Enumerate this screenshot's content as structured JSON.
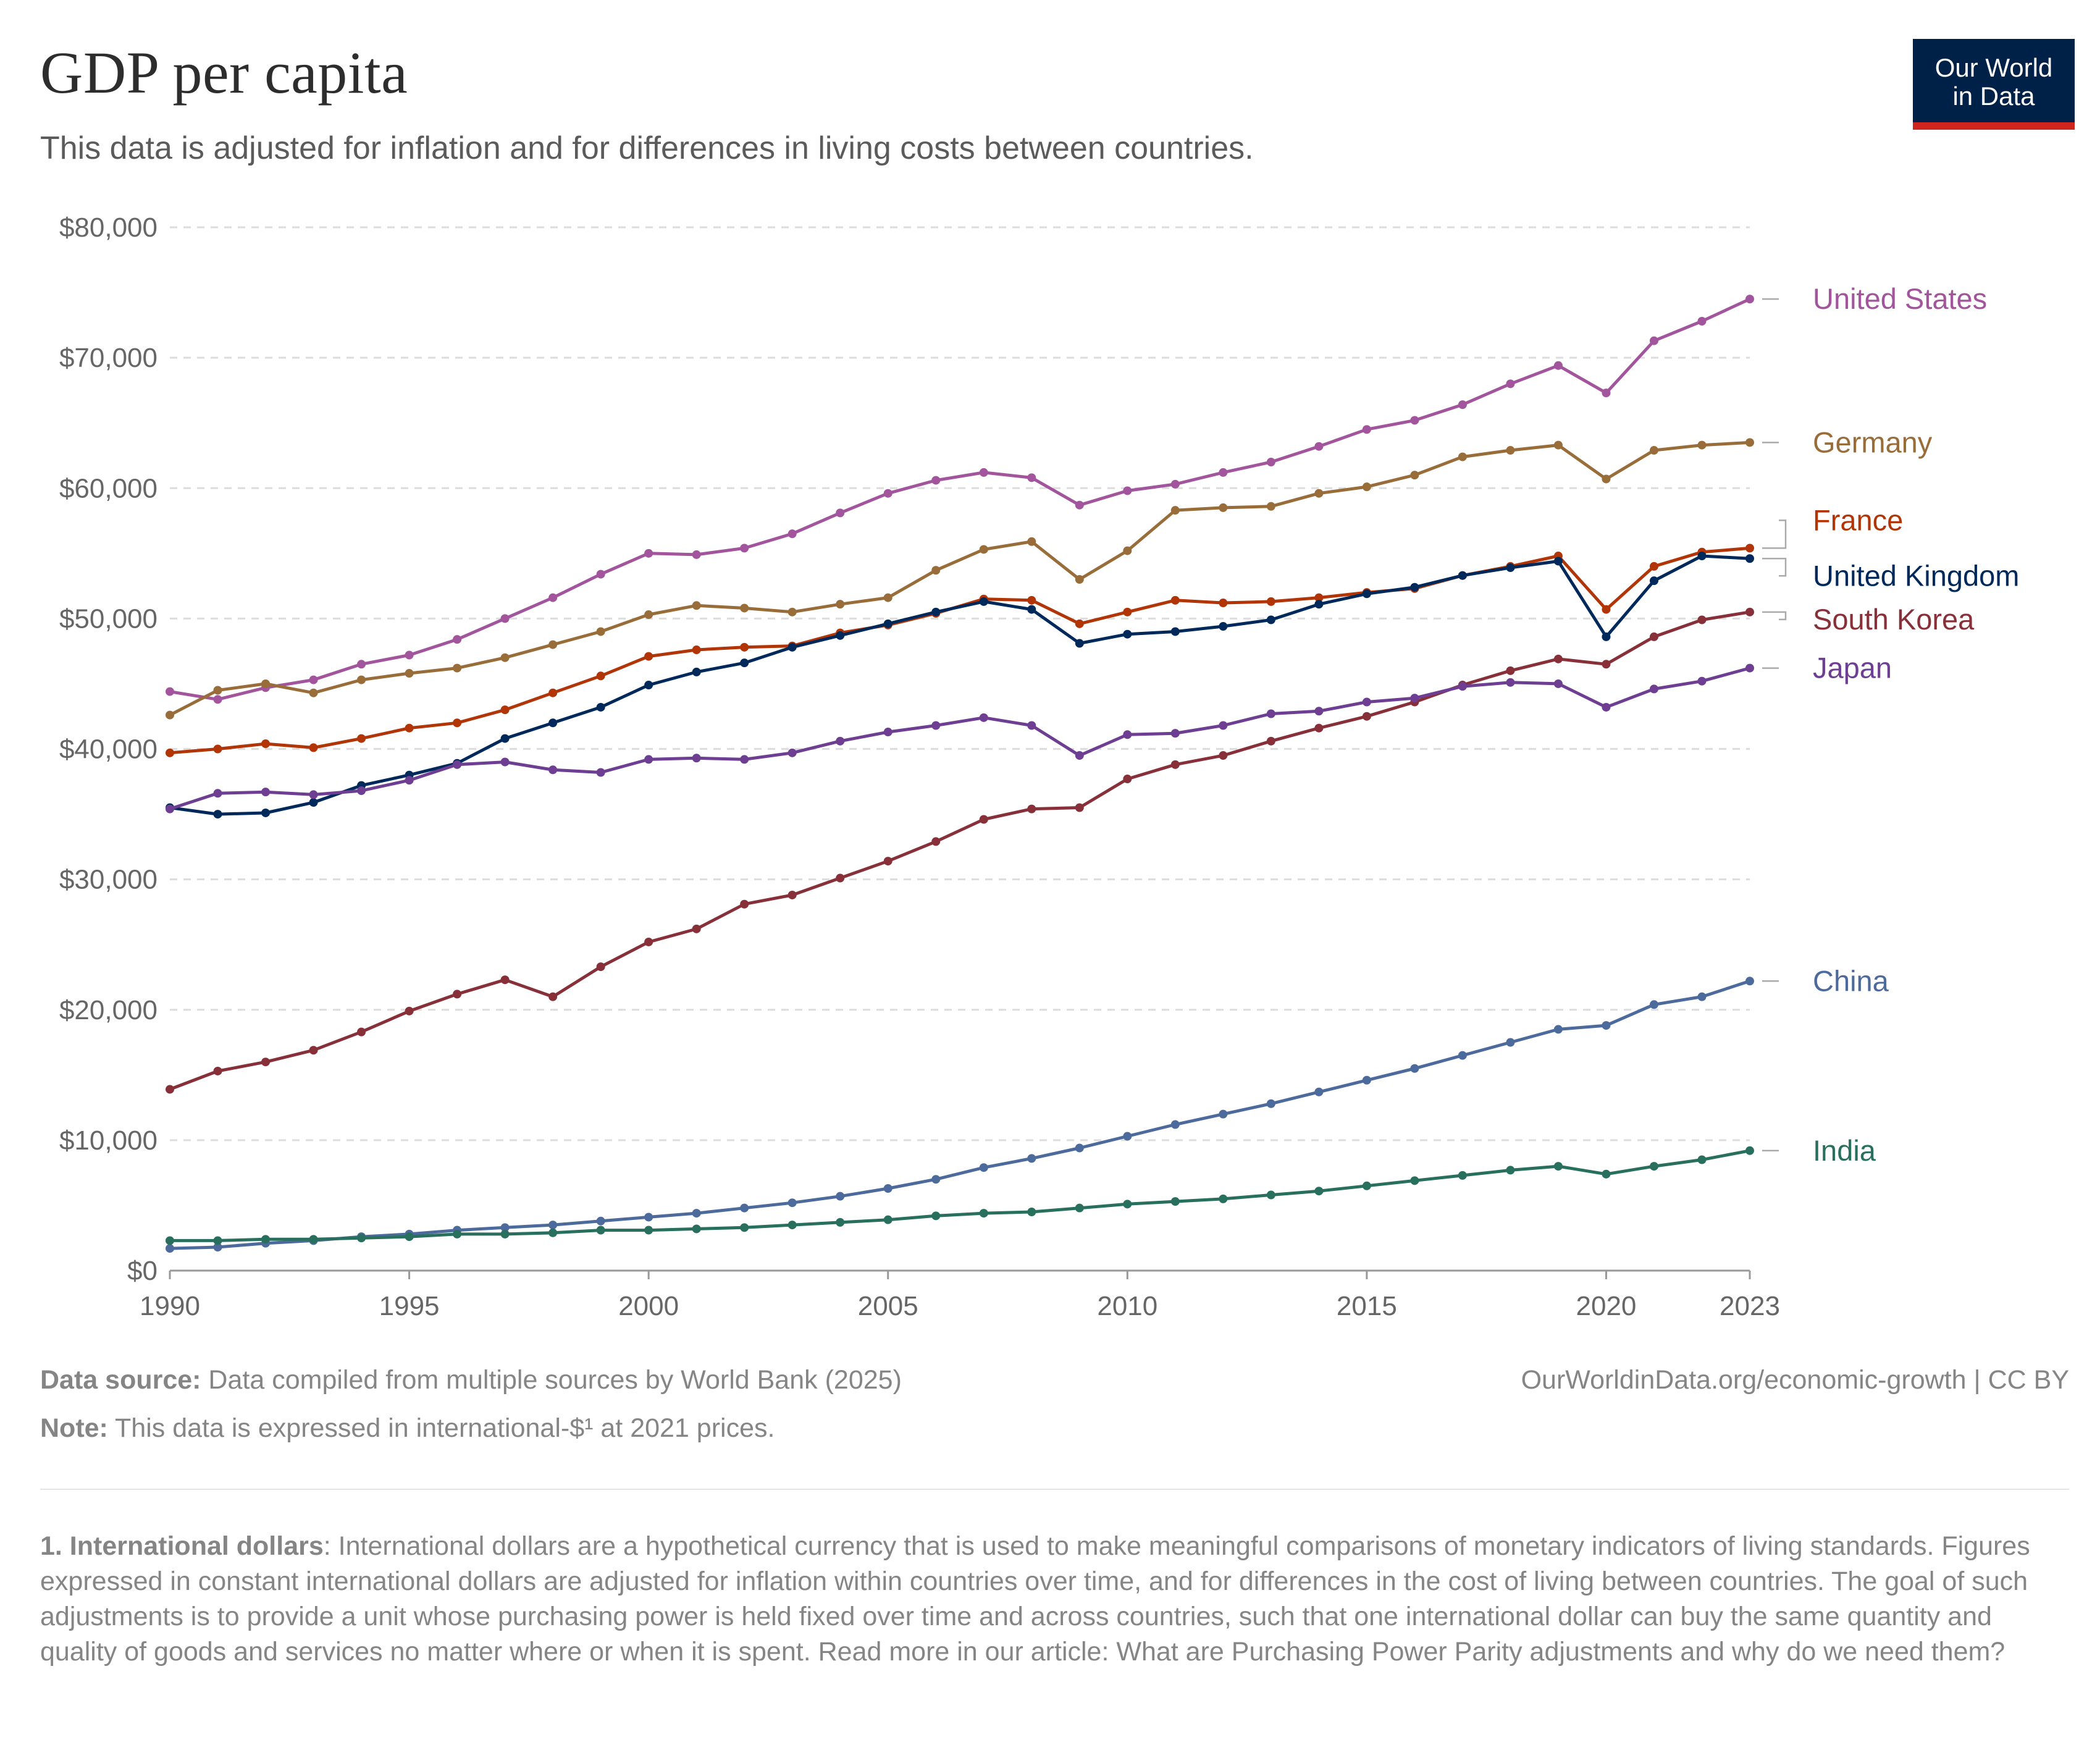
{
  "header": {
    "title": "GDP per capita",
    "subtitle": "This data is adjusted for inflation and for differences in living costs between countries."
  },
  "logo": {
    "line1": "Our World",
    "line2": "in Data",
    "bg_color": "#002147",
    "accent_color": "#ce261e"
  },
  "footer": {
    "source_label": "Data source:",
    "source_text": " Data compiled from multiple sources by World Bank (2025)",
    "note_label": "Note:",
    "note_text": " This data is expressed in international-$¹ at 2021 prices.",
    "credit": "OurWorldinData.org/economic-growth | CC BY"
  },
  "footnote": {
    "label": "1. International dollars",
    "text": ": International dollars are a hypothetical currency that is used to make meaningful comparisons of monetary indicators of living standards. Figures expressed in constant international dollars are adjusted for inflation within countries over time, and for differences in the cost of living between countries. The goal of such adjustments is to provide a unit whose purchasing power is held fixed over time and across countries, such that one international dollar can buy the same quantity and quality of goods and services no matter where or when it is spent. Read more in our article: What are Purchasing Power Parity adjustments and why do we need them?"
  },
  "chart_data": {
    "type": "line",
    "xlim": [
      1990,
      2023
    ],
    "ylim": [
      0,
      80000
    ],
    "grid": true,
    "x_ticks": [
      1990,
      1995,
      2000,
      2005,
      2010,
      2015,
      2020,
      2023
    ],
    "y_ticks": [
      {
        "value": 0,
        "label": "$0"
      },
      {
        "value": 10000,
        "label": "$10,000"
      },
      {
        "value": 20000,
        "label": "$20,000"
      },
      {
        "value": 30000,
        "label": "$30,000"
      },
      {
        "value": 40000,
        "label": "$40,000"
      },
      {
        "value": 50000,
        "label": "$50,000"
      },
      {
        "value": 60000,
        "label": "$60,000"
      },
      {
        "value": 70000,
        "label": "$70,000"
      },
      {
        "value": 80000,
        "label": "$80,000"
      }
    ],
    "legend_position": "right, inline labels",
    "x": [
      1990,
      1991,
      1992,
      1993,
      1994,
      1995,
      1996,
      1997,
      1998,
      1999,
      2000,
      2001,
      2002,
      2003,
      2004,
      2005,
      2006,
      2007,
      2008,
      2009,
      2010,
      2011,
      2012,
      2013,
      2014,
      2015,
      2016,
      2017,
      2018,
      2019,
      2020,
      2021,
      2022,
      2023
    ],
    "series": [
      {
        "name": "United States",
        "color": "#a2559c",
        "values": [
          44400,
          43800,
          44700,
          45300,
          46500,
          47200,
          48400,
          50000,
          51600,
          53400,
          55000,
          54900,
          55400,
          56500,
          58100,
          59600,
          60600,
          61200,
          60800,
          58700,
          59800,
          60300,
          61200,
          62000,
          63200,
          64500,
          65200,
          66400,
          68000,
          69400,
          67300,
          71300,
          72800,
          74500
        ]
      },
      {
        "name": "Germany",
        "color": "#996d39",
        "values": [
          42600,
          44500,
          45000,
          44300,
          45300,
          45800,
          46200,
          47000,
          48000,
          49000,
          50300,
          51000,
          50800,
          50500,
          51100,
          51600,
          53700,
          55300,
          55900,
          53000,
          55200,
          58300,
          58500,
          58600,
          59600,
          60100,
          61000,
          62400,
          62900,
          63300,
          60700,
          62900,
          63300,
          63500
        ]
      },
      {
        "name": "France",
        "color": "#b13507",
        "values": [
          39700,
          40000,
          40400,
          40100,
          40800,
          41600,
          42000,
          43000,
          44300,
          45600,
          47100,
          47600,
          47800,
          47900,
          48900,
          49500,
          50400,
          51500,
          51400,
          49600,
          50500,
          51400,
          51200,
          51300,
          51600,
          52000,
          52300,
          53300,
          54000,
          54800,
          50700,
          54000,
          55100,
          55400
        ]
      },
      {
        "name": "United Kingdom",
        "color": "#00295b",
        "values": [
          35500,
          35000,
          35100,
          35900,
          37200,
          38000,
          38900,
          40800,
          42000,
          43200,
          44900,
          45900,
          46600,
          47800,
          48700,
          49600,
          50500,
          51300,
          50700,
          48100,
          48800,
          49000,
          49400,
          49900,
          51100,
          51900,
          52400,
          53300,
          53900,
          54400,
          48600,
          52900,
          54800,
          54600
        ]
      },
      {
        "name": "South Korea",
        "color": "#883039",
        "values": [
          13900,
          15300,
          16000,
          16900,
          18300,
          19900,
          21200,
          22300,
          21000,
          23300,
          25200,
          26200,
          28100,
          28800,
          30100,
          31400,
          32900,
          34600,
          35400,
          35500,
          37700,
          38800,
          39500,
          40600,
          41600,
          42500,
          43600,
          44900,
          46000,
          46900,
          46500,
          48600,
          49900,
          50500
        ]
      },
      {
        "name": "Japan",
        "color": "#6d3e91",
        "values": [
          35400,
          36600,
          36700,
          36500,
          36800,
          37600,
          38800,
          39000,
          38400,
          38200,
          39200,
          39300,
          39200,
          39700,
          40600,
          41300,
          41800,
          42400,
          41800,
          39500,
          41100,
          41200,
          41800,
          42700,
          42900,
          43600,
          43900,
          44800,
          45100,
          45000,
          43200,
          44600,
          45200,
          46200
        ]
      },
      {
        "name": "China",
        "color": "#4c6a9c",
        "values": [
          1700,
          1800,
          2100,
          2300,
          2600,
          2800,
          3100,
          3300,
          3500,
          3800,
          4100,
          4400,
          4800,
          5200,
          5700,
          6300,
          7000,
          7900,
          8600,
          9400,
          10300,
          11200,
          12000,
          12800,
          13700,
          14600,
          15500,
          16500,
          17500,
          18500,
          18800,
          20400,
          21000,
          22200
        ]
      },
      {
        "name": "India",
        "color": "#286f5e",
        "values": [
          2300,
          2300,
          2400,
          2400,
          2500,
          2600,
          2800,
          2800,
          2900,
          3100,
          3100,
          3200,
          3300,
          3500,
          3700,
          3900,
          4200,
          4400,
          4500,
          4800,
          5100,
          5300,
          5500,
          5800,
          6100,
          6500,
          6900,
          7300,
          7700,
          8000,
          7400,
          8000,
          8500,
          9200
        ]
      }
    ]
  }
}
